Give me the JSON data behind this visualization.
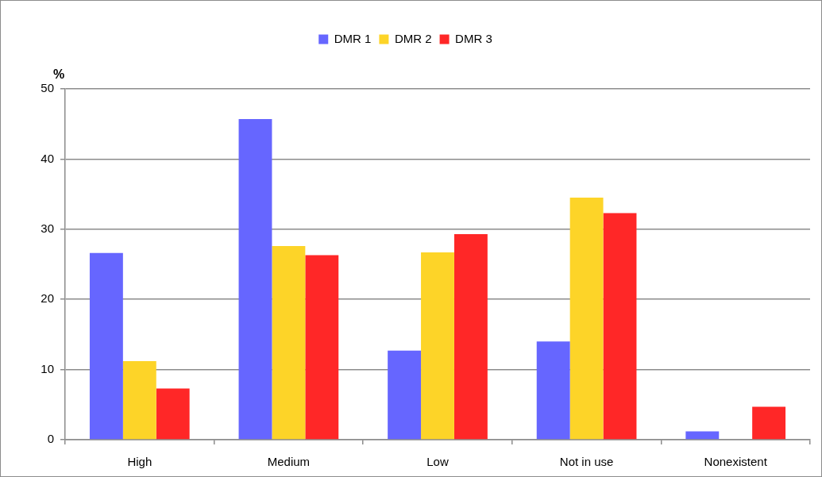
{
  "chart_data": {
    "type": "bar",
    "ylabel": "%",
    "categories": [
      "High",
      "Medium",
      "Low",
      "Not in use",
      "Nonexistent"
    ],
    "series": [
      {
        "name": "DMR 1",
        "color": "#6666ff",
        "values": [
          26.6,
          45.7,
          12.7,
          14.0,
          1.2
        ]
      },
      {
        "name": "DMR 2",
        "color": "#fdd428",
        "values": [
          11.2,
          27.6,
          26.7,
          34.5,
          0
        ]
      },
      {
        "name": "DMR 3",
        "color": "#ff2727",
        "values": [
          7.3,
          26.3,
          29.3,
          32.3,
          4.7
        ]
      }
    ],
    "ylim": [
      0,
      50
    ],
    "yticks": [
      0,
      10,
      20,
      30,
      40,
      50
    ],
    "grid": "y",
    "legend": "top"
  }
}
